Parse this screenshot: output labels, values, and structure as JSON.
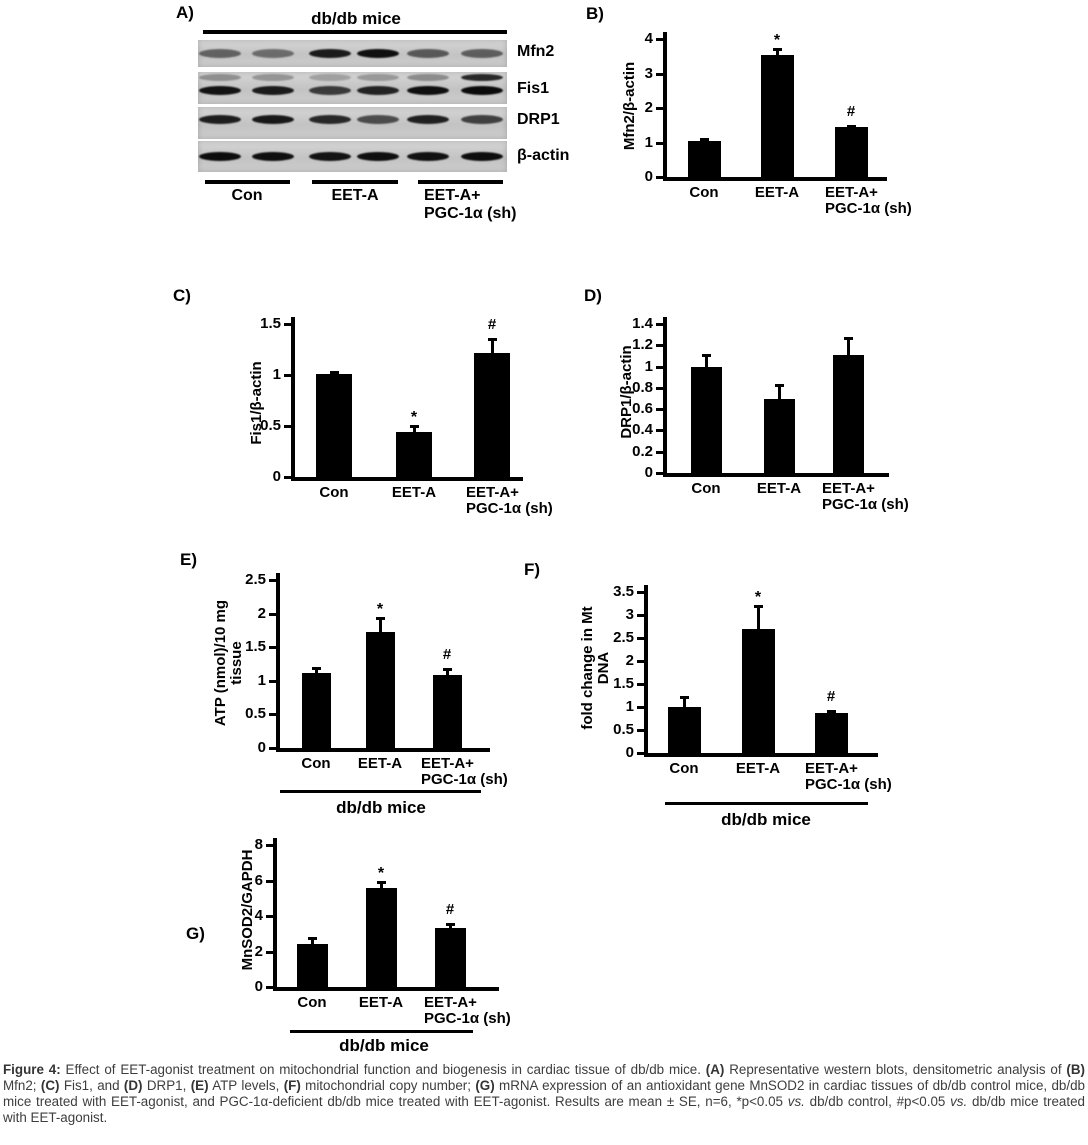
{
  "figure_label": "Figure 4",
  "panel_a": {
    "label": "A)",
    "title": "db/db mice",
    "blot_rows": [
      {
        "protein": "Mfn2",
        "bands": [
          0.5,
          0.45,
          0.86,
          0.92,
          0.55,
          0.52
        ]
      },
      {
        "protein": "Fis1",
        "bands": [
          0.9,
          0.86,
          0.7,
          0.82,
          0.92,
          0.94
        ],
        "upper_bands": [
          0.3,
          0.28,
          0.22,
          0.26,
          0.32,
          0.8
        ]
      },
      {
        "protein": "DRP1",
        "bands": [
          0.85,
          0.88,
          0.8,
          0.62,
          0.84,
          0.68
        ]
      },
      {
        "protein": "β-actin",
        "bands": [
          0.93,
          0.92,
          0.9,
          0.92,
          0.91,
          0.93
        ]
      }
    ],
    "groups": [
      [
        "Con"
      ],
      [
        "EET-A"
      ],
      [
        "EET-A+",
        "PGC-1α (sh)"
      ]
    ],
    "lanes_per_group": 2
  },
  "chart_data": [
    {
      "id": "B",
      "type": "bar",
      "panel_label": "B)",
      "ylabel_lines": [
        "Mfn2/β-actin"
      ],
      "ymax": 4,
      "yticks": [
        "4",
        "3",
        "2",
        "1",
        "0"
      ],
      "categories": [
        [
          "Con"
        ],
        [
          "EET-A"
        ],
        [
          "EET-A+",
          "PGC-1α (sh)"
        ]
      ],
      "values": [
        1.04,
        3.55,
        1.45
      ],
      "errors": [
        0.06,
        0.15,
        0.04
      ],
      "sig_markers": [
        "",
        "*",
        "#"
      ],
      "group_label": ""
    },
    {
      "id": "C",
      "type": "bar",
      "panel_label": "C)",
      "ylabel_lines": [
        "Fis1/β-actin"
      ],
      "ymax": 1.5,
      "yticks": [
        "1.5",
        "1",
        "0.5",
        "0"
      ],
      "categories": [
        [
          "Con"
        ],
        [
          "EET-A"
        ],
        [
          "EET-A+",
          "PGC-1α (sh)"
        ]
      ],
      "values": [
        1.01,
        0.44,
        1.22
      ],
      "errors": [
        0.02,
        0.06,
        0.13
      ],
      "sig_markers": [
        "",
        "*",
        "#"
      ],
      "group_label": ""
    },
    {
      "id": "D",
      "type": "bar",
      "panel_label": "D)",
      "ylabel_lines": [
        "DRP1/β-actin"
      ],
      "ymax": 1.4,
      "yticks": [
        "1.4",
        "1.2",
        "1",
        "0.8",
        "0.6",
        "0.4",
        "0.2",
        "0"
      ],
      "categories": [
        [
          "Con"
        ],
        [
          "EET-A"
        ],
        [
          "EET-A+",
          "PGC-1α (sh)"
        ]
      ],
      "values": [
        1.0,
        0.7,
        1.11
      ],
      "errors": [
        0.11,
        0.13,
        0.16
      ],
      "sig_markers": [
        "",
        "",
        ""
      ],
      "group_label": ""
    },
    {
      "id": "E",
      "type": "bar",
      "panel_label": "E)",
      "ylabel_lines": [
        "ATP (nmol)/10 mg",
        "tissue"
      ],
      "ymax": 2.5,
      "yticks": [
        "2.5",
        "2",
        "1.5",
        "1",
        "0.5",
        "0"
      ],
      "categories": [
        [
          "Con"
        ],
        [
          "EET-A"
        ],
        [
          "EET-A+",
          "PGC-1α (sh)"
        ]
      ],
      "values": [
        1.11,
        1.73,
        1.08
      ],
      "errors": [
        0.08,
        0.2,
        0.09
      ],
      "sig_markers": [
        "",
        "*",
        "#"
      ],
      "group_label": "db/db mice"
    },
    {
      "id": "F",
      "type": "bar",
      "panel_label": "F)",
      "ylabel_lines": [
        "fold change in Mt",
        "DNA"
      ],
      "ymax": 3.5,
      "yticks": [
        "3.5",
        "3",
        "2.5",
        "2",
        "1.5",
        "1",
        "0.5",
        "0"
      ],
      "categories": [
        [
          "Con"
        ],
        [
          "EET-A"
        ],
        [
          "EET-A+",
          "PGC-1α (sh)"
        ]
      ],
      "values": [
        1.0,
        2.69,
        0.87
      ],
      "errors": [
        0.22,
        0.5,
        0.04
      ],
      "sig_markers": [
        "",
        "*",
        "#"
      ],
      "group_label": "db/db mice"
    },
    {
      "id": "G",
      "type": "bar",
      "panel_label": "G)",
      "ylabel_lines": [
        "MnSOD2/GAPDH"
      ],
      "ymax": 8,
      "yticks": [
        "8",
        "6",
        "4",
        "2",
        "0"
      ],
      "categories": [
        [
          "Con"
        ],
        [
          "EET-A"
        ],
        [
          "EET-A+",
          "PGC-1α (sh)"
        ]
      ],
      "values": [
        2.42,
        5.58,
        3.35
      ],
      "errors": [
        0.33,
        0.33,
        0.22
      ],
      "sig_markers": [
        "",
        "*",
        "#"
      ],
      "group_label": "db/db mice"
    }
  ],
  "caption": {
    "segments": [
      {
        "t": "Figure 4:",
        "b": 1
      },
      {
        "t": " Effect of EET-agonist treatment on mitochondrial function and biogenesis in cardiac tissue of db/db mice. "
      },
      {
        "t": "(A)",
        "b": 1
      },
      {
        "t": " Representative western blots, densitometric analysis of "
      },
      {
        "t": "(B)",
        "b": 1
      },
      {
        "t": " Mfn2; "
      },
      {
        "t": "(C)",
        "b": 1
      },
      {
        "t": " Fis1, and "
      },
      {
        "t": "(D)",
        "b": 1
      },
      {
        "t": " DRP1, "
      },
      {
        "t": "(E)",
        "b": 1
      },
      {
        "t": " ATP levels, "
      },
      {
        "t": "(F)",
        "b": 1
      },
      {
        "t": " mitochondrial copy number; "
      },
      {
        "t": "(G)",
        "b": 1
      },
      {
        "t": " mRNA expression of an antioxidant gene MnSOD2 in cardiac tissues of db/db control mice, db/db mice treated with EET-agonist, and PGC-1α-deficient db/db mice treated with EET-agonist. Results are mean ± SE, n=6, *p<0.05 "
      },
      {
        "t": "vs.",
        "i": 1
      },
      {
        "t": " db/db control, #p<0.05 "
      },
      {
        "t": "vs.",
        "i": 1
      },
      {
        "t": " db/db mice treated with EET-agonist."
      }
    ]
  }
}
